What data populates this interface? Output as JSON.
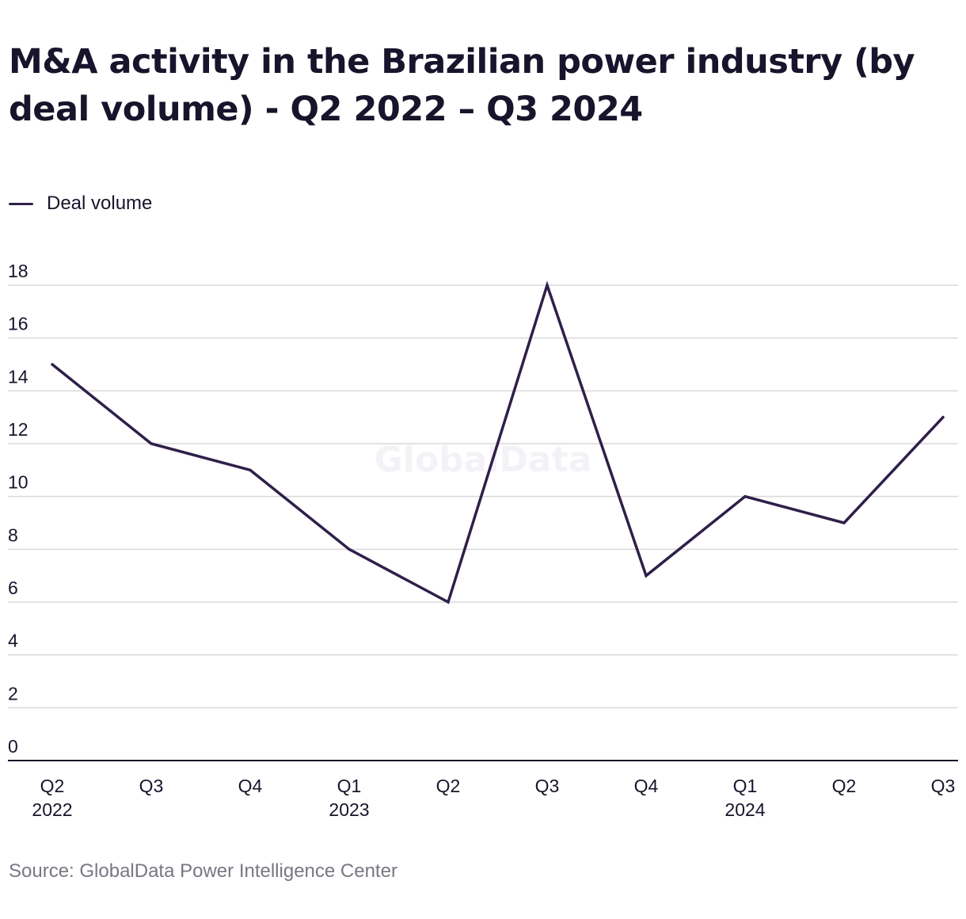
{
  "title": "M&A activity in the Brazilian power industry (by deal volume) - Q2 2022 – Q3 2024",
  "source": "Source: GlobalData Power Intelligence Center",
  "watermark": "GlobalData",
  "colors": {
    "line": "#2f1f4a",
    "grid": "#d9d9d9",
    "axis": "#17142b",
    "text": "#17142b",
    "source": "#7a7682"
  },
  "chart_data": {
    "type": "line",
    "title": "M&A activity in the Brazilian power industry (by deal volume) - Q2 2022 – Q3 2024",
    "xlabel": "",
    "ylabel": "",
    "ylim": [
      0,
      18
    ],
    "yticks": [
      0,
      2,
      4,
      6,
      8,
      10,
      12,
      14,
      16,
      18
    ],
    "grid": true,
    "legend_position": "top-left",
    "categories": [
      {
        "quarter": "Q2",
        "year": "2022"
      },
      {
        "quarter": "Q3",
        "year": ""
      },
      {
        "quarter": "Q4",
        "year": ""
      },
      {
        "quarter": "Q1",
        "year": "2023"
      },
      {
        "quarter": "Q2",
        "year": ""
      },
      {
        "quarter": "Q3",
        "year": ""
      },
      {
        "quarter": "Q4",
        "year": ""
      },
      {
        "quarter": "Q1",
        "year": "2024"
      },
      {
        "quarter": "Q2",
        "year": ""
      },
      {
        "quarter": "Q3",
        "year": ""
      }
    ],
    "series": [
      {
        "name": "Deal volume",
        "values": [
          15,
          12,
          11,
          8,
          6,
          18,
          7,
          10,
          9,
          13
        ]
      }
    ]
  }
}
